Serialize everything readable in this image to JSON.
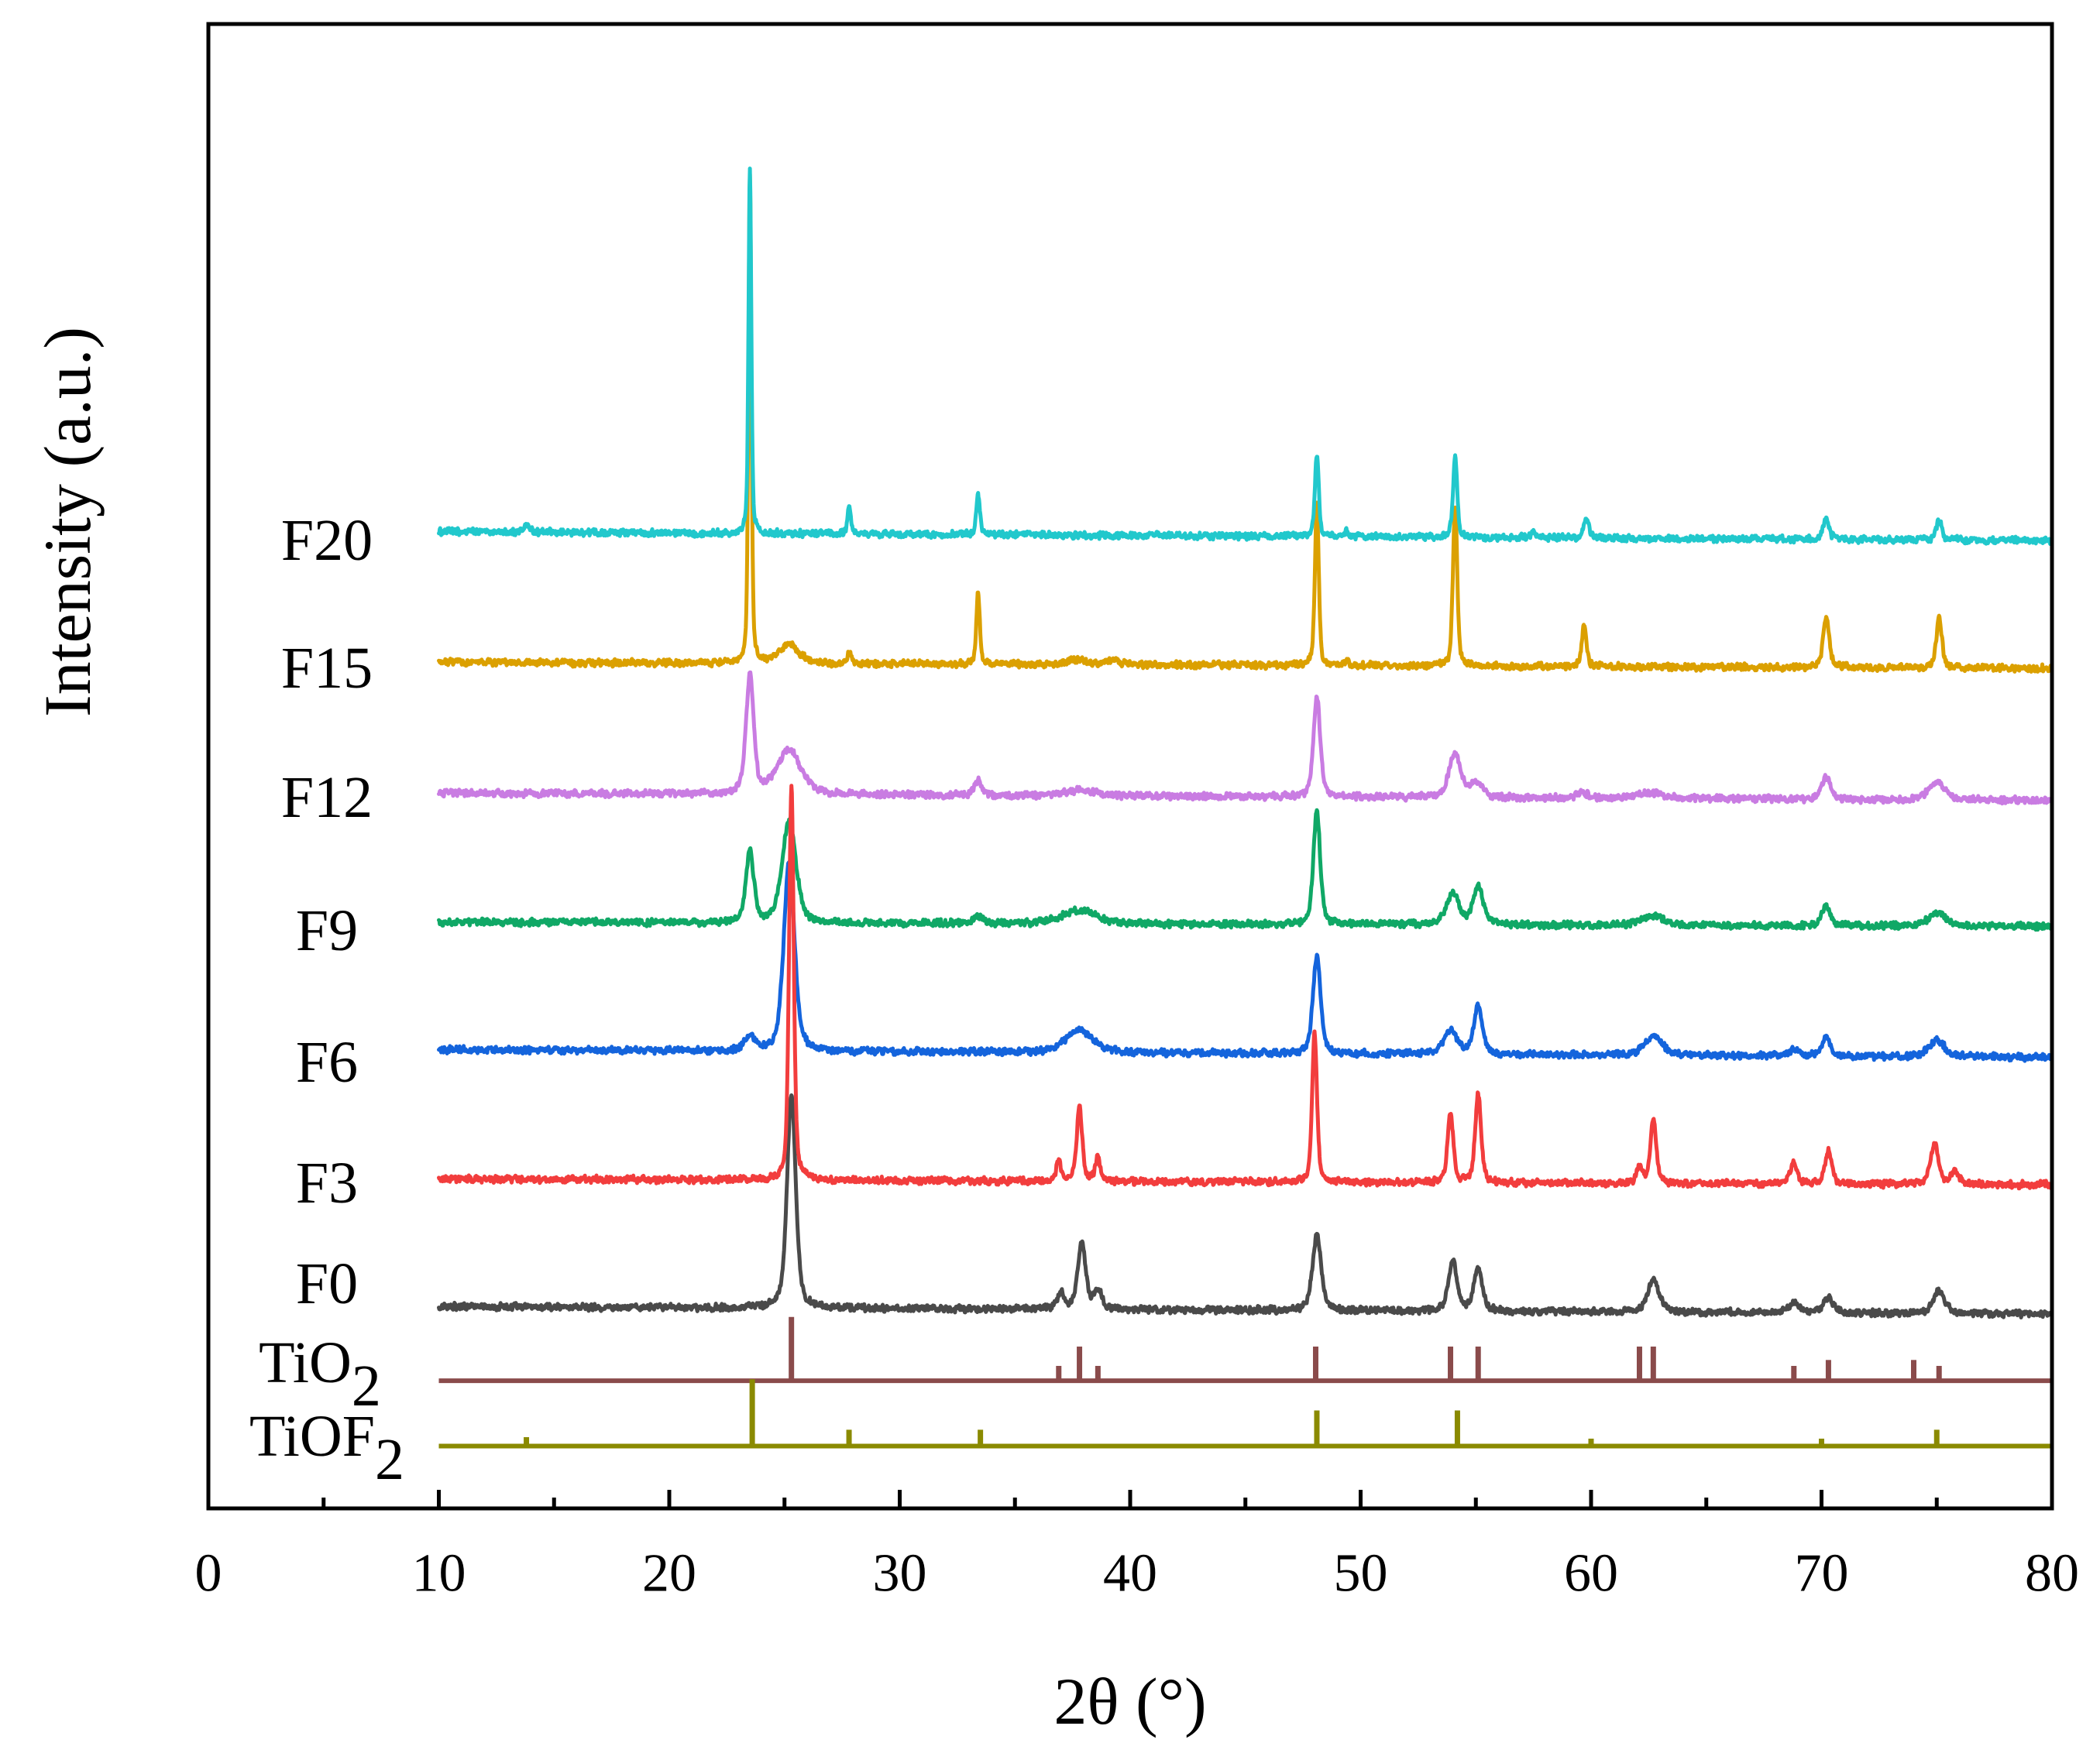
{
  "chart_data": {
    "type": "line",
    "title": "",
    "xlabel": "2θ (°)",
    "ylabel": "Intensity (a.u.)",
    "xlim": [
      0,
      80
    ],
    "ylim": [
      0,
      100
    ],
    "xticks": [
      0,
      10,
      20,
      30,
      40,
      50,
      60,
      70,
      80
    ],
    "x_range": [
      10,
      80
    ],
    "series": [
      {
        "name": "F20",
        "color": "#21C8CC",
        "offset": [
          65.8,
          65.2
        ],
        "peaks": [
          [
            13.8,
            0.5,
            0.3
          ],
          [
            23.5,
            24.7,
            0.14
          ],
          [
            27.8,
            1.7,
            0.18
          ],
          [
            33.4,
            2.8,
            0.18
          ],
          [
            48.1,
            5.6,
            0.2
          ],
          [
            49.4,
            0.4,
            0.2
          ],
          [
            54.1,
            5.3,
            0.22
          ],
          [
            57.5,
            0.3,
            0.3
          ],
          [
            59.8,
            1.3,
            0.25
          ],
          [
            70.2,
            1.4,
            0.3
          ],
          [
            75.1,
            1.3,
            0.3
          ]
        ]
      },
      {
        "name": "F15",
        "color": "#DBA000",
        "offset": [
          57.0,
          56.6
        ],
        "peaks": [
          [
            23.5,
            32.9,
            0.15
          ],
          [
            25.2,
            1.3,
            1.0
          ],
          [
            27.8,
            0.8,
            0.2
          ],
          [
            33.4,
            4.9,
            0.18
          ],
          [
            37.7,
            0.3,
            1.2
          ],
          [
            39.3,
            0.3,
            0.6
          ],
          [
            48.1,
            10.9,
            0.2
          ],
          [
            49.4,
            0.3,
            0.2
          ],
          [
            54.1,
            10.9,
            0.22
          ],
          [
            59.7,
            2.7,
            0.25
          ],
          [
            70.2,
            3.5,
            0.3
          ],
          [
            75.1,
            3.3,
            0.3
          ]
        ]
      },
      {
        "name": "F12",
        "color": "#C97CE2",
        "offset": [
          48.2,
          47.7
        ],
        "peaks": [
          [
            23.5,
            7.9,
            0.4
          ],
          [
            25.2,
            3.0,
            1.2
          ],
          [
            33.4,
            1.0,
            0.35
          ],
          [
            37.8,
            0.4,
            1.5
          ],
          [
            48.1,
            6.8,
            0.35
          ],
          [
            54.1,
            3.0,
            0.6
          ],
          [
            55.0,
            1.0,
            0.6
          ],
          [
            59.6,
            0.4,
            0.6
          ],
          [
            62.6,
            0.4,
            1.2
          ],
          [
            70.2,
            1.5,
            0.45
          ],
          [
            75.0,
            1.1,
            0.9
          ]
        ]
      },
      {
        "name": "F9",
        "color": "#10A866",
        "offset": [
          39.5,
          39.2
        ],
        "peaks": [
          [
            23.5,
            4.8,
            0.4
          ],
          [
            25.2,
            6.9,
            0.7
          ],
          [
            33.4,
            0.45,
            0.4
          ],
          [
            37.8,
            0.9,
            1.8
          ],
          [
            48.1,
            7.6,
            0.35
          ],
          [
            54.0,
            2.0,
            0.7
          ],
          [
            55.1,
            2.6,
            0.5
          ],
          [
            62.7,
            0.65,
            1.2
          ],
          [
            70.2,
            1.45,
            0.4
          ],
          [
            75.0,
            0.9,
            0.9
          ]
        ]
      },
      {
        "name": "F6",
        "color": "#1464DC",
        "offset": [
          30.9,
          30.4
        ],
        "peaks": [
          [
            23.5,
            1.0,
            0.5
          ],
          [
            25.2,
            12.8,
            0.55
          ],
          [
            37.8,
            1.5,
            1.4
          ],
          [
            48.1,
            6.6,
            0.4
          ],
          [
            53.9,
            1.6,
            0.7
          ],
          [
            55.1,
            3.2,
            0.45
          ],
          [
            62.7,
            1.3,
            0.9
          ],
          [
            68.8,
            0.4,
            0.5
          ],
          [
            70.2,
            1.4,
            0.4
          ],
          [
            75.0,
            1.1,
            0.8
          ]
        ]
      },
      {
        "name": "F3",
        "color": "#F23D3D",
        "offset": [
          22.2,
          21.8
        ],
        "peaks": [
          [
            25.3,
            26.5,
            0.24
          ],
          [
            36.9,
            1.3,
            0.25
          ],
          [
            37.8,
            5.1,
            0.28
          ],
          [
            38.6,
            1.5,
            0.28
          ],
          [
            48.0,
            10.0,
            0.25
          ],
          [
            53.9,
            4.7,
            0.3
          ],
          [
            55.1,
            6.0,
            0.3
          ],
          [
            62.1,
            1.1,
            0.3
          ],
          [
            62.7,
            4.3,
            0.3
          ],
          [
            68.8,
            1.4,
            0.35
          ],
          [
            70.3,
            2.2,
            0.35
          ],
          [
            74.9,
            2.7,
            0.4
          ],
          [
            75.8,
            0.8,
            0.4
          ]
        ]
      },
      {
        "name": "F0",
        "color": "#4A4A4A",
        "offset": [
          13.6,
          13.1
        ],
        "peaks": [
          [
            25.3,
            14.3,
            0.45
          ],
          [
            37.0,
            1.1,
            0.35
          ],
          [
            37.9,
            4.5,
            0.4
          ],
          [
            38.6,
            1.3,
            0.4
          ],
          [
            48.1,
            5.1,
            0.45
          ],
          [
            54.0,
            3.3,
            0.45
          ],
          [
            55.1,
            2.8,
            0.45
          ],
          [
            62.7,
            2.2,
            0.6
          ],
          [
            68.8,
            0.7,
            0.5
          ],
          [
            70.3,
            1.0,
            0.5
          ],
          [
            75.1,
            1.5,
            0.6
          ]
        ]
      }
    ],
    "references": [
      {
        "label": "TiO",
        "subscript": "2",
        "color": "#8A4B4B",
        "offset": 8.6,
        "sticks": [
          [
            25.3,
            4.3
          ],
          [
            36.9,
            1.0
          ],
          [
            37.8,
            2.3
          ],
          [
            38.6,
            1.0
          ],
          [
            48.05,
            2.3
          ],
          [
            53.9,
            2.3
          ],
          [
            55.1,
            2.3
          ],
          [
            62.1,
            2.3
          ],
          [
            62.7,
            2.3
          ],
          [
            68.8,
            1.0
          ],
          [
            70.3,
            1.4
          ],
          [
            74.0,
            1.4
          ],
          [
            75.1,
            1.0
          ]
        ]
      },
      {
        "label": "TiOF",
        "subscript": "2",
        "color": "#8A8A00",
        "offset": 4.2,
        "sticks": [
          [
            13.8,
            0.6
          ],
          [
            23.6,
            4.5
          ],
          [
            27.8,
            1.1
          ],
          [
            33.5,
            1.1
          ],
          [
            48.1,
            2.4
          ],
          [
            54.2,
            2.4
          ],
          [
            60.0,
            0.5
          ],
          [
            70.0,
            0.5
          ],
          [
            75.0,
            1.1
          ]
        ]
      }
    ]
  }
}
